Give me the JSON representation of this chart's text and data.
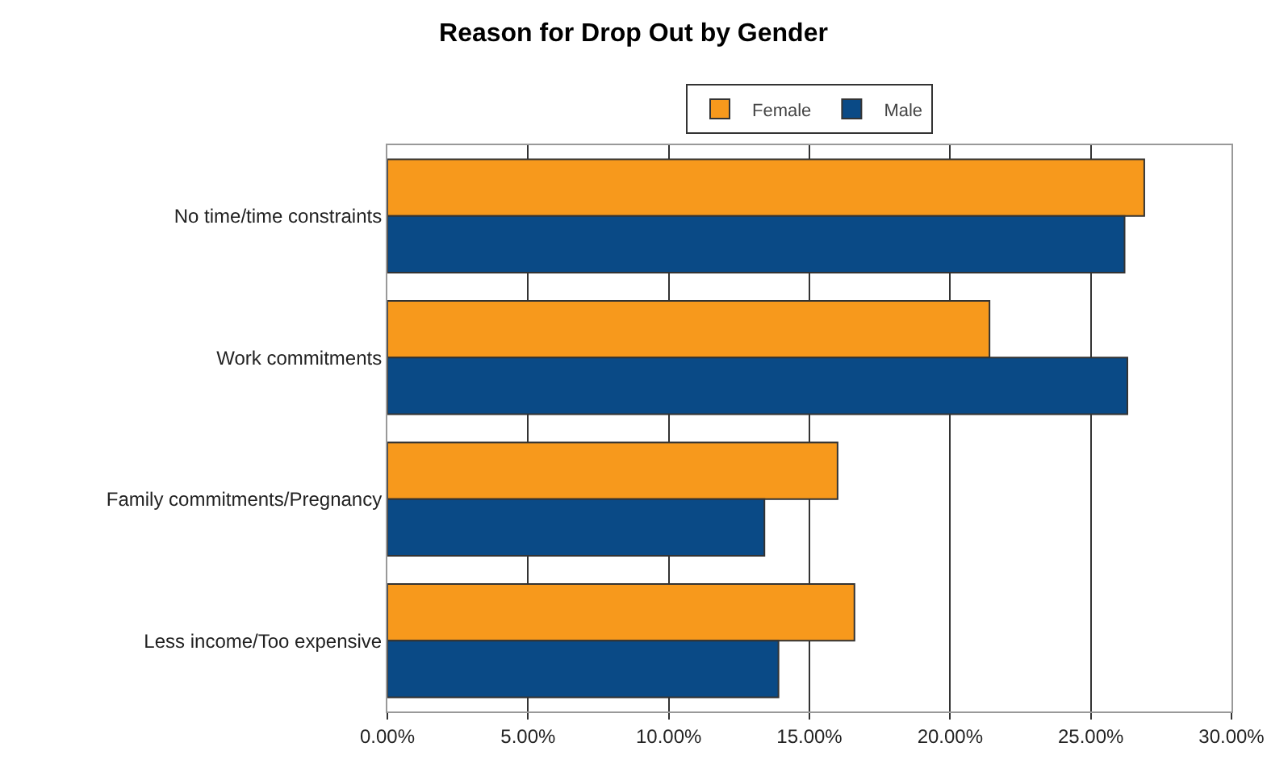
{
  "chart_data": {
    "type": "bar",
    "orientation": "horizontal",
    "title": "Reason for Drop Out by Gender",
    "categories": [
      "No time/time constraints",
      "Work commitments",
      "Family commitments/Pregnancy",
      "Less income/Too expensive"
    ],
    "series": [
      {
        "name": "Female",
        "color": "#f7991c",
        "values": [
          26.9,
          21.4,
          16.0,
          16.6
        ]
      },
      {
        "name": "Male",
        "color": "#0a4a86",
        "values": [
          26.2,
          26.3,
          13.4,
          13.9
        ]
      }
    ],
    "xlim": [
      0,
      30
    ],
    "xticks": [
      {
        "value": 0,
        "label": "0.00%"
      },
      {
        "value": 5,
        "label": "5.00%"
      },
      {
        "value": 10,
        "label": "10.00%"
      },
      {
        "value": 15,
        "label": "15.00%"
      },
      {
        "value": 20,
        "label": "20.00%"
      },
      {
        "value": 25,
        "label": "25.00%"
      },
      {
        "value": 30,
        "label": "30.00%"
      }
    ],
    "grid": "x",
    "legend": "top"
  }
}
